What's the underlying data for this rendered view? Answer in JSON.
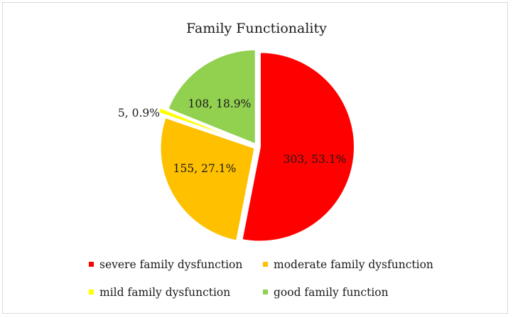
{
  "chart_data": {
    "type": "pie",
    "title": "Family Functionality",
    "categories": [
      "severe family dysfunction",
      "moderate family dysfunction",
      "mild family dysfunction",
      "good family function"
    ],
    "values": [
      303,
      155,
      5,
      108
    ],
    "percents": [
      "53.1%",
      "27.1%",
      "0.9%",
      "18.9%"
    ],
    "data_labels": [
      "303, 53.1%",
      "155, 27.1%",
      "5, 0.9%",
      "108, 18.9%"
    ],
    "colors": [
      "#ff0000",
      "#ffc000",
      "#ffff00",
      "#92d050"
    ],
    "legend_position": "bottom",
    "start_angle_deg": 0,
    "direction": "clockwise"
  }
}
